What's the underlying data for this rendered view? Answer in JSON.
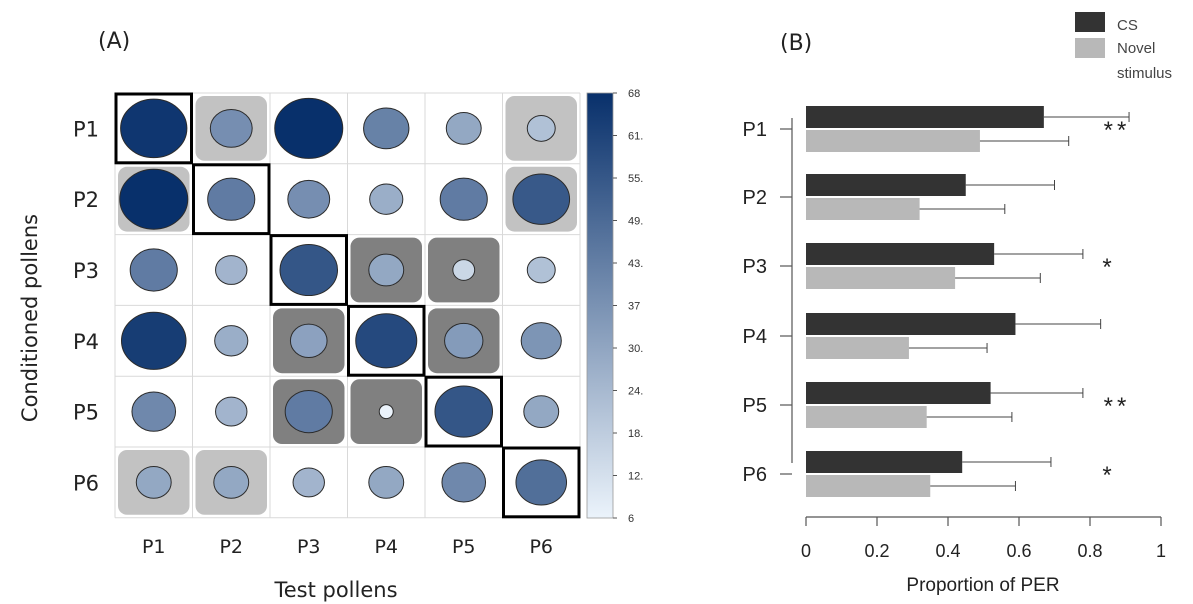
{
  "panel_a": {
    "label": "(A)",
    "xlabel": "Test pollens",
    "ylabel": "Conditioned pollens",
    "chart_data": {
      "type": "heatmap",
      "rows": [
        "P1",
        "P2",
        "P3",
        "P4",
        "P5",
        "P6"
      ],
      "cols": [
        "P1",
        "P2",
        "P3",
        "P4",
        "P5",
        "P6"
      ],
      "values": [
        [
          66,
          38,
          68,
          42,
          30,
          22
        ],
        [
          68,
          44,
          38,
          28,
          44,
          55
        ],
        [
          44,
          26,
          56,
          30,
          15,
          22
        ],
        [
          64,
          28,
          32,
          60,
          34,
          36
        ],
        [
          40,
          26,
          44,
          6,
          56,
          30
        ],
        [
          30,
          30,
          26,
          30,
          40,
          48
        ]
      ],
      "background": [
        [
          "none",
          "light",
          "none",
          "none",
          "none",
          "light"
        ],
        [
          "light",
          "none",
          "none",
          "none",
          "none",
          "light"
        ],
        [
          "none",
          "none",
          "none",
          "dark",
          "dark",
          "none"
        ],
        [
          "none",
          "none",
          "dark",
          "none",
          "dark",
          "none"
        ],
        [
          "none",
          "none",
          "dark",
          "dark",
          "none",
          "none"
        ],
        [
          "light",
          "light",
          "none",
          "none",
          "none",
          "none"
        ]
      ],
      "colorbar": {
        "ticks": [
          "68",
          "61.",
          "55.",
          "49.",
          "43.",
          "37",
          "30.",
          "24.",
          "18.",
          "12.",
          "6"
        ],
        "min": 6,
        "max": 68
      }
    }
  },
  "panel_b": {
    "label": "(B)",
    "xlabel": "Proportion of PER",
    "legend": {
      "placement": "top-right",
      "items": [
        {
          "label": "CS",
          "color": "#333333"
        },
        {
          "label": "Novel",
          "label2": "stimulus",
          "color": "#b8b8b8"
        }
      ]
    },
    "chart_data": {
      "type": "bar",
      "orientation": "horizontal",
      "categories": [
        "P1",
        "P2",
        "P3",
        "P4",
        "P5",
        "P6"
      ],
      "series": [
        {
          "name": "CS",
          "values": [
            0.67,
            0.45,
            0.53,
            0.59,
            0.52,
            0.44
          ],
          "errors": [
            0.24,
            0.25,
            0.25,
            0.24,
            0.26,
            0.25
          ],
          "color": "#333333"
        },
        {
          "name": "Novel stimulus",
          "values": [
            0.49,
            0.32,
            0.42,
            0.29,
            0.34,
            0.35
          ],
          "errors": [
            0.25,
            0.24,
            0.24,
            0.22,
            0.24,
            0.24
          ],
          "color": "#b8b8b8"
        }
      ],
      "significance": [
        "**",
        "",
        "*",
        "",
        "**",
        "*"
      ],
      "xlim": [
        0,
        1
      ],
      "xticks": [
        "0",
        "0.2",
        "0.4",
        "0.6",
        "0.8",
        "1"
      ]
    }
  }
}
